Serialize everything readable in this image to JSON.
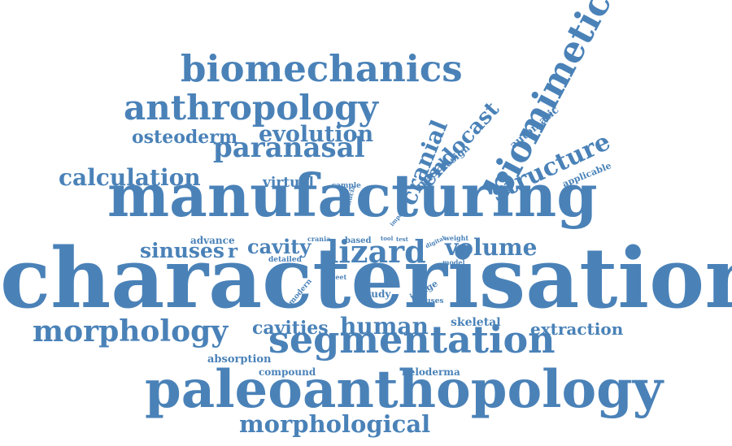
{
  "accent_color": "#4a82b8",
  "words": [
    {
      "text": "characterisation",
      "slot": 0
    },
    {
      "text": "manufacturing",
      "slot": 1
    },
    {
      "text": "paleoanthopology",
      "slot": 2
    },
    {
      "text": "biomechanics",
      "slot": 3
    },
    {
      "text": "anthropology",
      "slot": 4
    },
    {
      "text": "segmentation",
      "slot": 5
    },
    {
      "text": "morphology",
      "slot": 6
    },
    {
      "text": "morphological",
      "slot": 7
    },
    {
      "text": "paranasal",
      "slot": 8
    },
    {
      "text": "evolution",
      "slot": 9
    },
    {
      "text": "osteoderm",
      "slot": 10
    },
    {
      "text": "calculation",
      "slot": 11
    },
    {
      "text": "lizard",
      "slot": 12
    },
    {
      "text": "volume",
      "slot": 13
    },
    {
      "text": "human",
      "slot": 14
    },
    {
      "text": "cavities",
      "slot": 15
    },
    {
      "text": "cavity",
      "slot": 16
    },
    {
      "text": "sinuses",
      "slot": 17
    },
    {
      "text": "r",
      "slot": 18
    },
    {
      "text": "extraction",
      "slot": 19
    },
    {
      "text": "structure",
      "slot": 20
    },
    {
      "text": "biomimetic",
      "slot": 21
    },
    {
      "text": "cranial",
      "slot": 22
    },
    {
      "text": "endocast",
      "slot": 23
    },
    {
      "text": "nasal",
      "slot": 24
    },
    {
      "text": "design",
      "slot": 25
    },
    {
      "text": "automatic",
      "slot": 26
    },
    {
      "text": "virtual",
      "slot": 27
    },
    {
      "text": "applicable",
      "slot": 28
    },
    {
      "text": "sample",
      "slot": 29
    },
    {
      "text": "cornucia",
      "slot": 30
    },
    {
      "text": "impact",
      "slot": 31
    },
    {
      "text": "advance",
      "slot": 32
    },
    {
      "text": "based",
      "slot": 33
    },
    {
      "text": "crania",
      "slot": 34
    },
    {
      "text": "tool",
      "slot": 35
    },
    {
      "text": "test",
      "slot": 36
    },
    {
      "text": "digital",
      "slot": 37
    },
    {
      "text": "weight",
      "slot": 38
    },
    {
      "text": "detailed",
      "slot": 39
    },
    {
      "text": "model",
      "slot": 40
    },
    {
      "text": "sheet",
      "slot": 41
    },
    {
      "text": "modern",
      "slot": 42
    },
    {
      "text": "study",
      "slot": 43
    },
    {
      "text": "image",
      "slot": 44
    },
    {
      "text": "sinuses",
      "slot": 45
    },
    {
      "text": "skeletal",
      "slot": 46
    },
    {
      "text": "absorption",
      "slot": 47
    },
    {
      "text": "compound",
      "slot": 48
    },
    {
      "text": "heloderma",
      "slot": 49
    }
  ]
}
